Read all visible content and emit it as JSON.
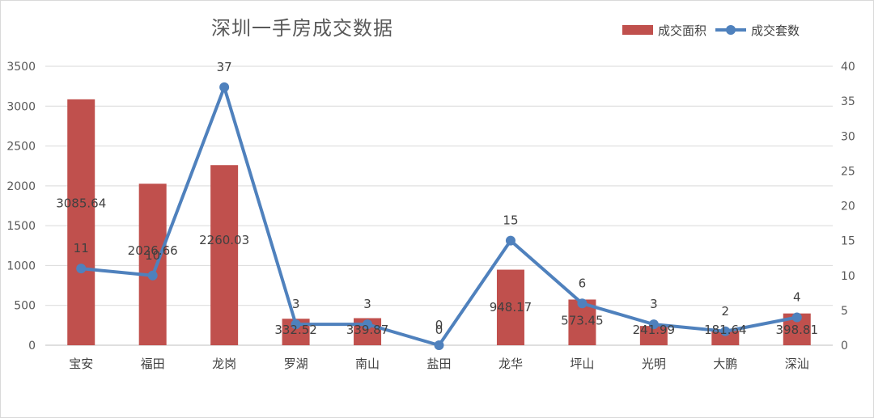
{
  "chart_data": {
    "type": "bar",
    "title": "深圳一手房成交数据",
    "categories": [
      "宝安",
      "福田",
      "龙岗",
      "罗湖",
      "南山",
      "盐田",
      "龙华",
      "坪山",
      "光明",
      "大鹏",
      "深汕"
    ],
    "series": [
      {
        "name": "成交面积",
        "type": "bar",
        "axis": "left",
        "color": "#c0504d",
        "values": [
          3085.64,
          2026.66,
          2260.03,
          332.52,
          339.87,
          0,
          948.17,
          573.45,
          241.99,
          181.64,
          398.81
        ],
        "labels": [
          "3085.64",
          "2026.66",
          "2260.03",
          "332.52",
          "339.87",
          "0",
          "948.17",
          "573.45",
          "241.99",
          "181.64",
          "398.81"
        ]
      },
      {
        "name": "成交套数",
        "type": "line",
        "axis": "right",
        "color": "#4f81bd",
        "values": [
          11,
          10,
          37,
          3,
          3,
          0,
          15,
          6,
          3,
          2,
          4
        ],
        "labels": [
          "11",
          "10",
          "37",
          "3",
          "3",
          "0",
          "15",
          "6",
          "3",
          "2",
          "4"
        ]
      }
    ],
    "y_left": {
      "min": 0,
      "max": 3500,
      "ticks": [
        "0",
        "500",
        "1000",
        "1500",
        "2000",
        "2500",
        "3000",
        "3500"
      ]
    },
    "y_right": {
      "min": 0,
      "max": 40,
      "ticks": [
        "0",
        "5",
        "10",
        "15",
        "20",
        "25",
        "30",
        "35",
        "40"
      ]
    },
    "grid": true,
    "legend_position": "top-right"
  }
}
